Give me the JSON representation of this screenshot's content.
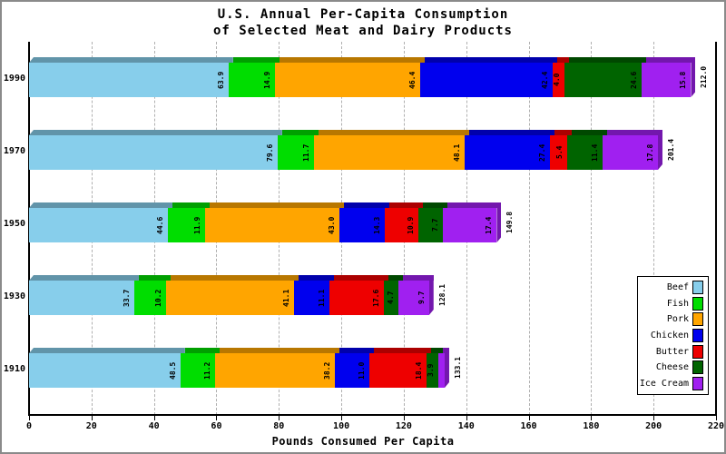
{
  "window": {
    "background": "#ffffff",
    "border_color": "#8a8a8a"
  },
  "title": {
    "line1": "U.S. Annual Per-Capita Consumption",
    "line2": "of Selected Meat and Dairy Products"
  },
  "chart_data": {
    "type": "bar",
    "orientation": "horizontal",
    "stacked": true,
    "title": "U.S. Annual Per-Capita Consumption of Selected Meat and Dairy Products",
    "xlabel": "Pounds Consumed Per Capita",
    "xlim": [
      0,
      220
    ],
    "xticks": [
      0,
      20,
      40,
      60,
      80,
      100,
      120,
      140,
      160,
      180,
      200,
      220
    ],
    "grid": "vertical-dashed",
    "gridline_color": "#b0b0b0",
    "categories": [
      "1990",
      "1970",
      "1950",
      "1930",
      "1910"
    ],
    "series": [
      {
        "name": "Beef",
        "color": "#87CEEB",
        "values": [
          63.9,
          79.6,
          44.6,
          33.7,
          48.5
        ]
      },
      {
        "name": "Fish",
        "color": "#00DD00",
        "values": [
          14.9,
          11.7,
          11.9,
          10.2,
          11.2
        ]
      },
      {
        "name": "Pork",
        "color": "#FFA500",
        "values": [
          46.4,
          48.1,
          43.0,
          41.1,
          38.2
        ]
      },
      {
        "name": "Chicken",
        "color": "#0000EE",
        "values": [
          42.4,
          27.4,
          14.3,
          11.1,
          11.0
        ]
      },
      {
        "name": "Butter",
        "color": "#EE0000",
        "values": [
          4.0,
          5.4,
          10.9,
          17.6,
          18.4
        ]
      },
      {
        "name": "Cheese",
        "color": "#006400",
        "values": [
          24.6,
          11.4,
          7.7,
          4.7,
          3.9
        ]
      },
      {
        "name": "Ice Cream",
        "color": "#A020F0",
        "values": [
          15.8,
          17.8,
          17.4,
          9.7,
          1.9
        ]
      }
    ],
    "totals": [
      212.0,
      201.4,
      149.8,
      128.1,
      133.1
    ],
    "legend": {
      "position": "bottom-right",
      "items": [
        "Beef",
        "Fish",
        "Pork",
        "Chicken",
        "Butter",
        "Cheese",
        "Ice Cream"
      ]
    }
  }
}
